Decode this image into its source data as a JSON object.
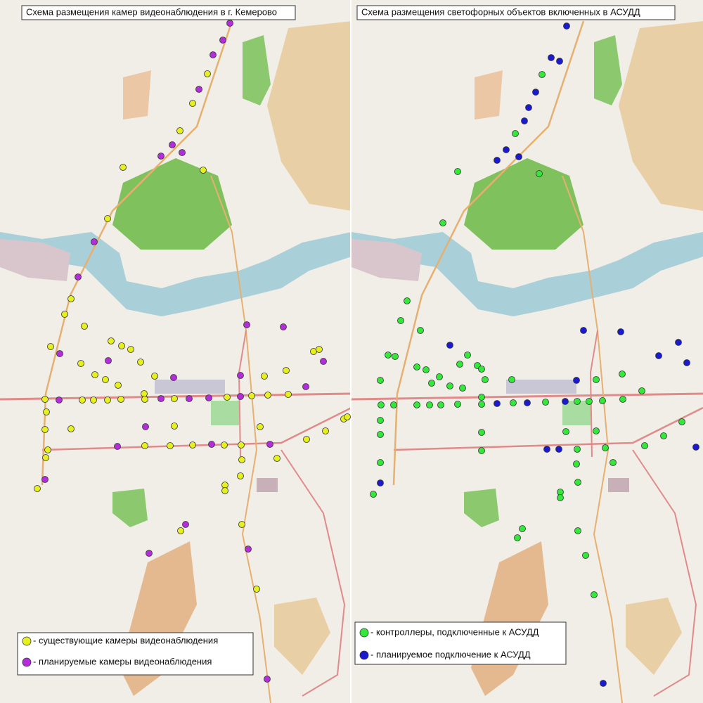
{
  "left_map": {
    "title": "Схема размещения камер видеонаблюдения в г. Кемерово",
    "legend": [
      "- существующие камеры видеонаблюдения",
      "- планируемые камеры видеонаблюдения"
    ]
  },
  "right_map": {
    "title": "Схема размещения светофорных объектов включенных в АСУДД",
    "legend": [
      "- контроллеры, подключенные к АСУДД",
      "- планируемое подключение к АСУДД"
    ]
  }
}
